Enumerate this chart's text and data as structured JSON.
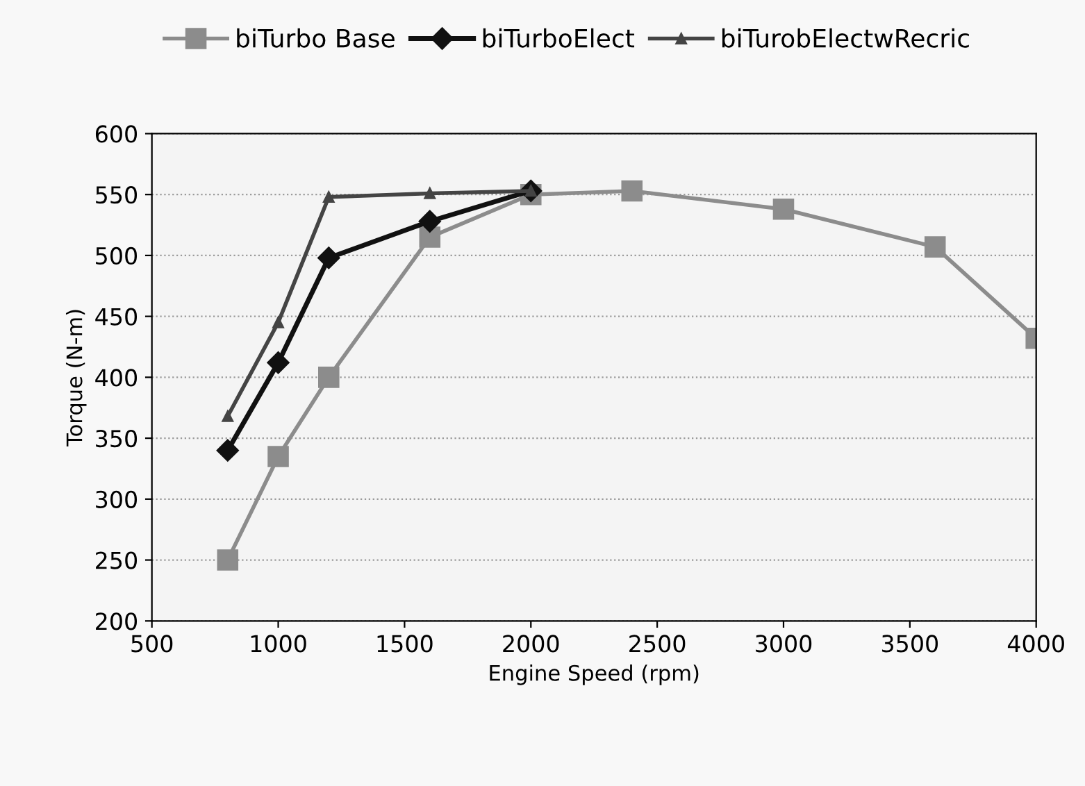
{
  "chart_data": {
    "type": "line",
    "xlabel": "Engine Speed (rpm)",
    "ylabel": "Torque (N-m)",
    "xlim": [
      500,
      4000
    ],
    "xticks": [
      500,
      1000,
      1500,
      2000,
      2500,
      3000,
      3500,
      4000
    ],
    "ylim": [
      200,
      600
    ],
    "yticks": [
      200,
      250,
      300,
      350,
      400,
      450,
      500,
      550,
      600
    ],
    "grid": "y",
    "legend": "top",
    "line_style": "solid",
    "series": [
      {
        "name": "biTurbo Base",
        "color": "#8c8c8c",
        "marker": "square",
        "x": [
          800,
          1000,
          1200,
          1600,
          2000,
          2400,
          3000,
          3600,
          4000
        ],
        "values": [
          250,
          335,
          400,
          515,
          550,
          553,
          538,
          507,
          432
        ]
      },
      {
        "name": "biTurboElect",
        "color": "#111111",
        "marker": "diamond",
        "x": [
          800,
          1000,
          1200,
          1600,
          2000
        ],
        "values": [
          340,
          412,
          498,
          528,
          553
        ]
      },
      {
        "name": "biTurobElectwRecric",
        "color": "#444444",
        "marker": "triangle",
        "x": [
          800,
          1000,
          1200,
          1600,
          2000
        ],
        "values": [
          368,
          445,
          548,
          551,
          553
        ]
      }
    ]
  }
}
